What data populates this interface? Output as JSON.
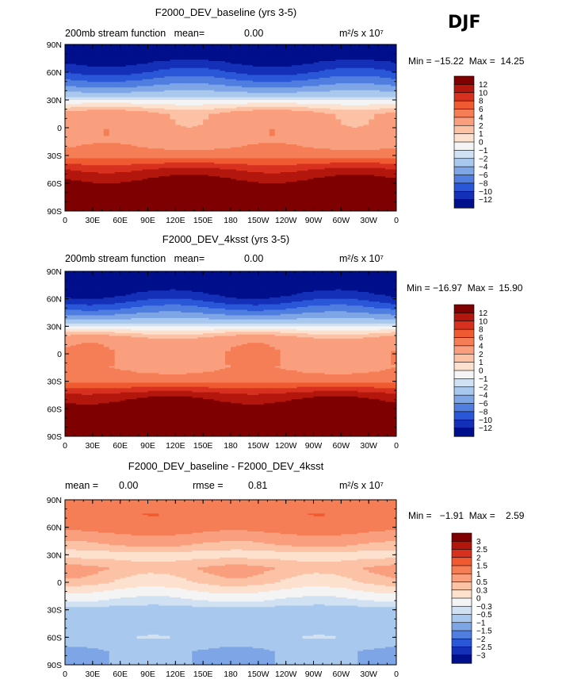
{
  "season": "DJF",
  "panels": [
    {
      "title": "F2000_DEV_baseline (yrs 3-5)",
      "left_label": "200mb stream function   mean=",
      "left_value": "0.00",
      "mid_label": "",
      "mid_value": "",
      "units": "m²/s x 10⁷",
      "min_max": "Min = −15.22  Max =  14.25"
    },
    {
      "title": "F2000_DEV_4ksst (yrs 3-5)",
      "left_label": "200mb stream function   mean=",
      "left_value": "0.00",
      "mid_label": "",
      "mid_value": "",
      "units": "m²/s x 10⁷",
      "min_max": "Min = −16.97  Max =  15.90"
    },
    {
      "title": "F2000_DEV_baseline - F2000_DEV_4ksst",
      "left_label": "mean =",
      "left_value": "0.00",
      "mid_label": "rmse =",
      "mid_value": "0.81",
      "units": "m²/s x 10⁷",
      "min_max": "Min =   −1.91  Max =    2.59"
    }
  ],
  "chart_data": [
    {
      "type": "heatmap",
      "title": "F2000_DEV_baseline (yrs 3-5)",
      "variable": "200mb stream function",
      "mean": 0.0,
      "min": -15.22,
      "max": 14.25,
      "x_ticks": [
        "0",
        "30E",
        "60E",
        "90E",
        "120E",
        "150E",
        "180",
        "150W",
        "120W",
        "90W",
        "60W",
        "30W",
        "0"
      ],
      "y_ticks": [
        "90N",
        "60N",
        "30N",
        "0",
        "30S",
        "60S",
        "90S"
      ],
      "levels": [
        "12",
        "10",
        "8",
        "6",
        "4",
        "2",
        "1",
        "0",
        "−1",
        "−2",
        "−4",
        "−6",
        "−8",
        "−10",
        "−12"
      ],
      "level_values": [
        12,
        10,
        8,
        6,
        4,
        2,
        1,
        0,
        -1,
        -2,
        -4,
        -6,
        -8,
        -10,
        -12
      ],
      "colors": [
        "#7f0000",
        "#b2160c",
        "#d7301f",
        "#ef5a30",
        "#f57e56",
        "#fa9f7e",
        "#fcc2a6",
        "#fde1cf",
        "#f4f4f4",
        "#d0e1f4",
        "#a9c8ee",
        "#7ea6e6",
        "#4f7de0",
        "#2a56d8",
        "#1430b8",
        "#000f8c"
      ],
      "profile_lat": [
        90,
        75,
        60,
        45,
        30,
        15,
        0,
        -15,
        -30,
        -45,
        -60,
        -75,
        -90
      ],
      "profile_val": [
        -14,
        -13,
        -10,
        -6,
        -1,
        2.5,
        3,
        3.2,
        5,
        10,
        13,
        14,
        14
      ]
    },
    {
      "type": "heatmap",
      "title": "F2000_DEV_4ksst (yrs 3-5)",
      "variable": "200mb stream function",
      "mean": 0.0,
      "min": -16.97,
      "max": 15.9,
      "x_ticks": [
        "0",
        "30E",
        "60E",
        "90E",
        "120E",
        "150E",
        "180",
        "150W",
        "120W",
        "90W",
        "60W",
        "30W",
        "0"
      ],
      "y_ticks": [
        "90N",
        "60N",
        "30N",
        "0",
        "30S",
        "60S",
        "90S"
      ],
      "levels": [
        "12",
        "10",
        "8",
        "6",
        "4",
        "2",
        "1",
        "0",
        "−1",
        "−2",
        "−4",
        "−6",
        "−8",
        "−10",
        "−12"
      ],
      "level_values": [
        12,
        10,
        8,
        6,
        4,
        2,
        1,
        0,
        -1,
        -2,
        -4,
        -6,
        -8,
        -10,
        -12
      ],
      "colors": [
        "#7f0000",
        "#b2160c",
        "#d7301f",
        "#ef5a30",
        "#f57e56",
        "#fa9f7e",
        "#fcc2a6",
        "#fde1cf",
        "#f4f4f4",
        "#d0e1f4",
        "#a9c8ee",
        "#7ea6e6",
        "#4f7de0",
        "#2a56d8",
        "#1430b8",
        "#000f8c"
      ],
      "profile_lat": [
        90,
        75,
        60,
        45,
        30,
        15,
        0,
        -15,
        -30,
        -45,
        -60,
        -75,
        -90
      ],
      "profile_val": [
        -15,
        -14,
        -11,
        -6.5,
        -1,
        3,
        3.5,
        3.5,
        5.5,
        11,
        14,
        15,
        15
      ]
    },
    {
      "type": "heatmap",
      "title": "F2000_DEV_baseline - F2000_DEV_4ksst",
      "mean": 0.0,
      "rmse": 0.81,
      "min": -1.91,
      "max": 2.59,
      "x_ticks": [
        "0",
        "30E",
        "60E",
        "90E",
        "120E",
        "150E",
        "180",
        "150W",
        "120W",
        "90W",
        "60W",
        "30W",
        "0"
      ],
      "y_ticks": [
        "90N",
        "60N",
        "30N",
        "0",
        "30S",
        "60S",
        "90S"
      ],
      "levels": [
        "3",
        "2.5",
        "2",
        "1.5",
        "1",
        "0.5",
        "0.3",
        "0",
        "−0.3",
        "−0.5",
        "−1",
        "−1.5",
        "−2",
        "−2.5",
        "−3"
      ],
      "level_values": [
        3,
        2.5,
        2,
        1.5,
        1,
        0.5,
        0.3,
        0,
        -0.3,
        -0.5,
        -1,
        -1.5,
        -2,
        -2.5,
        -3
      ],
      "colors": [
        "#7f0000",
        "#b2160c",
        "#d7301f",
        "#ef5a30",
        "#f57e56",
        "#fa9f7e",
        "#fcc2a6",
        "#fde1cf",
        "#f4f4f4",
        "#d0e1f4",
        "#a9c8ee",
        "#7ea6e6",
        "#4f7de0",
        "#2a56d8",
        "#1430b8",
        "#000f8c"
      ],
      "profile_lat": [
        90,
        75,
        60,
        45,
        30,
        15,
        0,
        -15,
        -30,
        -45,
        -60,
        -75,
        -90
      ],
      "profile_val": [
        1.2,
        1.4,
        1.3,
        0.6,
        0.2,
        0.5,
        0.3,
        -0.2,
        -0.6,
        -0.9,
        -0.6,
        -1.0,
        -1.0
      ]
    }
  ]
}
